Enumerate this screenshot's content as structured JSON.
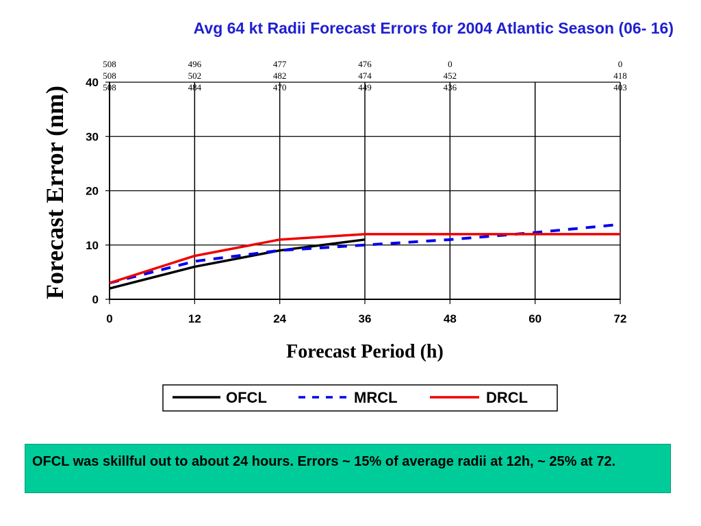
{
  "title": "Avg 64 kt Radii Forecast Errors for 2004 Atlantic Season (06- 16)",
  "note": "OFCL was skillful out to about 24 hours. Errors ~ 15% of average radii at 12h, ~ 25% at 72.",
  "chart_data": {
    "type": "line",
    "x": [
      0,
      12,
      24,
      36,
      48,
      60,
      72
    ],
    "xlabel": "Forecast Period (h)",
    "ylabel": "Forecast Error (nm)",
    "xlim": [
      0,
      72
    ],
    "ylim": [
      0,
      40
    ],
    "xticks": [
      "0",
      "12",
      "24",
      "36",
      "48",
      "60",
      "72"
    ],
    "yticks": [
      "0",
      "10",
      "20",
      "30",
      "40"
    ],
    "grid": true,
    "legend_position": "bottom",
    "series": [
      {
        "name": "OFCL",
        "color": "#000000",
        "style": "solid",
        "points": [
          [
            0,
            2
          ],
          [
            12,
            6
          ],
          [
            24,
            9
          ],
          [
            36,
            11
          ]
        ]
      },
      {
        "name": "MRCL",
        "color": "#0000ee",
        "style": "dashed",
        "points": [
          [
            0,
            3
          ],
          [
            12,
            7
          ],
          [
            24,
            9
          ],
          [
            36,
            10
          ],
          [
            48,
            11
          ],
          [
            60,
            12.3
          ],
          [
            72,
            13.8
          ]
        ]
      },
      {
        "name": "DRCL",
        "color": "#ee0000",
        "style": "solid",
        "points": [
          [
            0,
            3
          ],
          [
            12,
            8
          ],
          [
            24,
            11
          ],
          [
            36,
            12
          ],
          [
            48,
            12
          ],
          [
            60,
            12
          ],
          [
            72,
            12
          ]
        ]
      }
    ],
    "case_counts": {
      "x": [
        0,
        12,
        24,
        36,
        48,
        72
      ],
      "rows": [
        [
          "508",
          "496",
          "477",
          "476",
          "0",
          "0"
        ],
        [
          "508",
          "502",
          "482",
          "474",
          "452",
          "418"
        ],
        [
          "508",
          "484",
          "470",
          "449",
          "436",
          "403"
        ]
      ]
    }
  }
}
